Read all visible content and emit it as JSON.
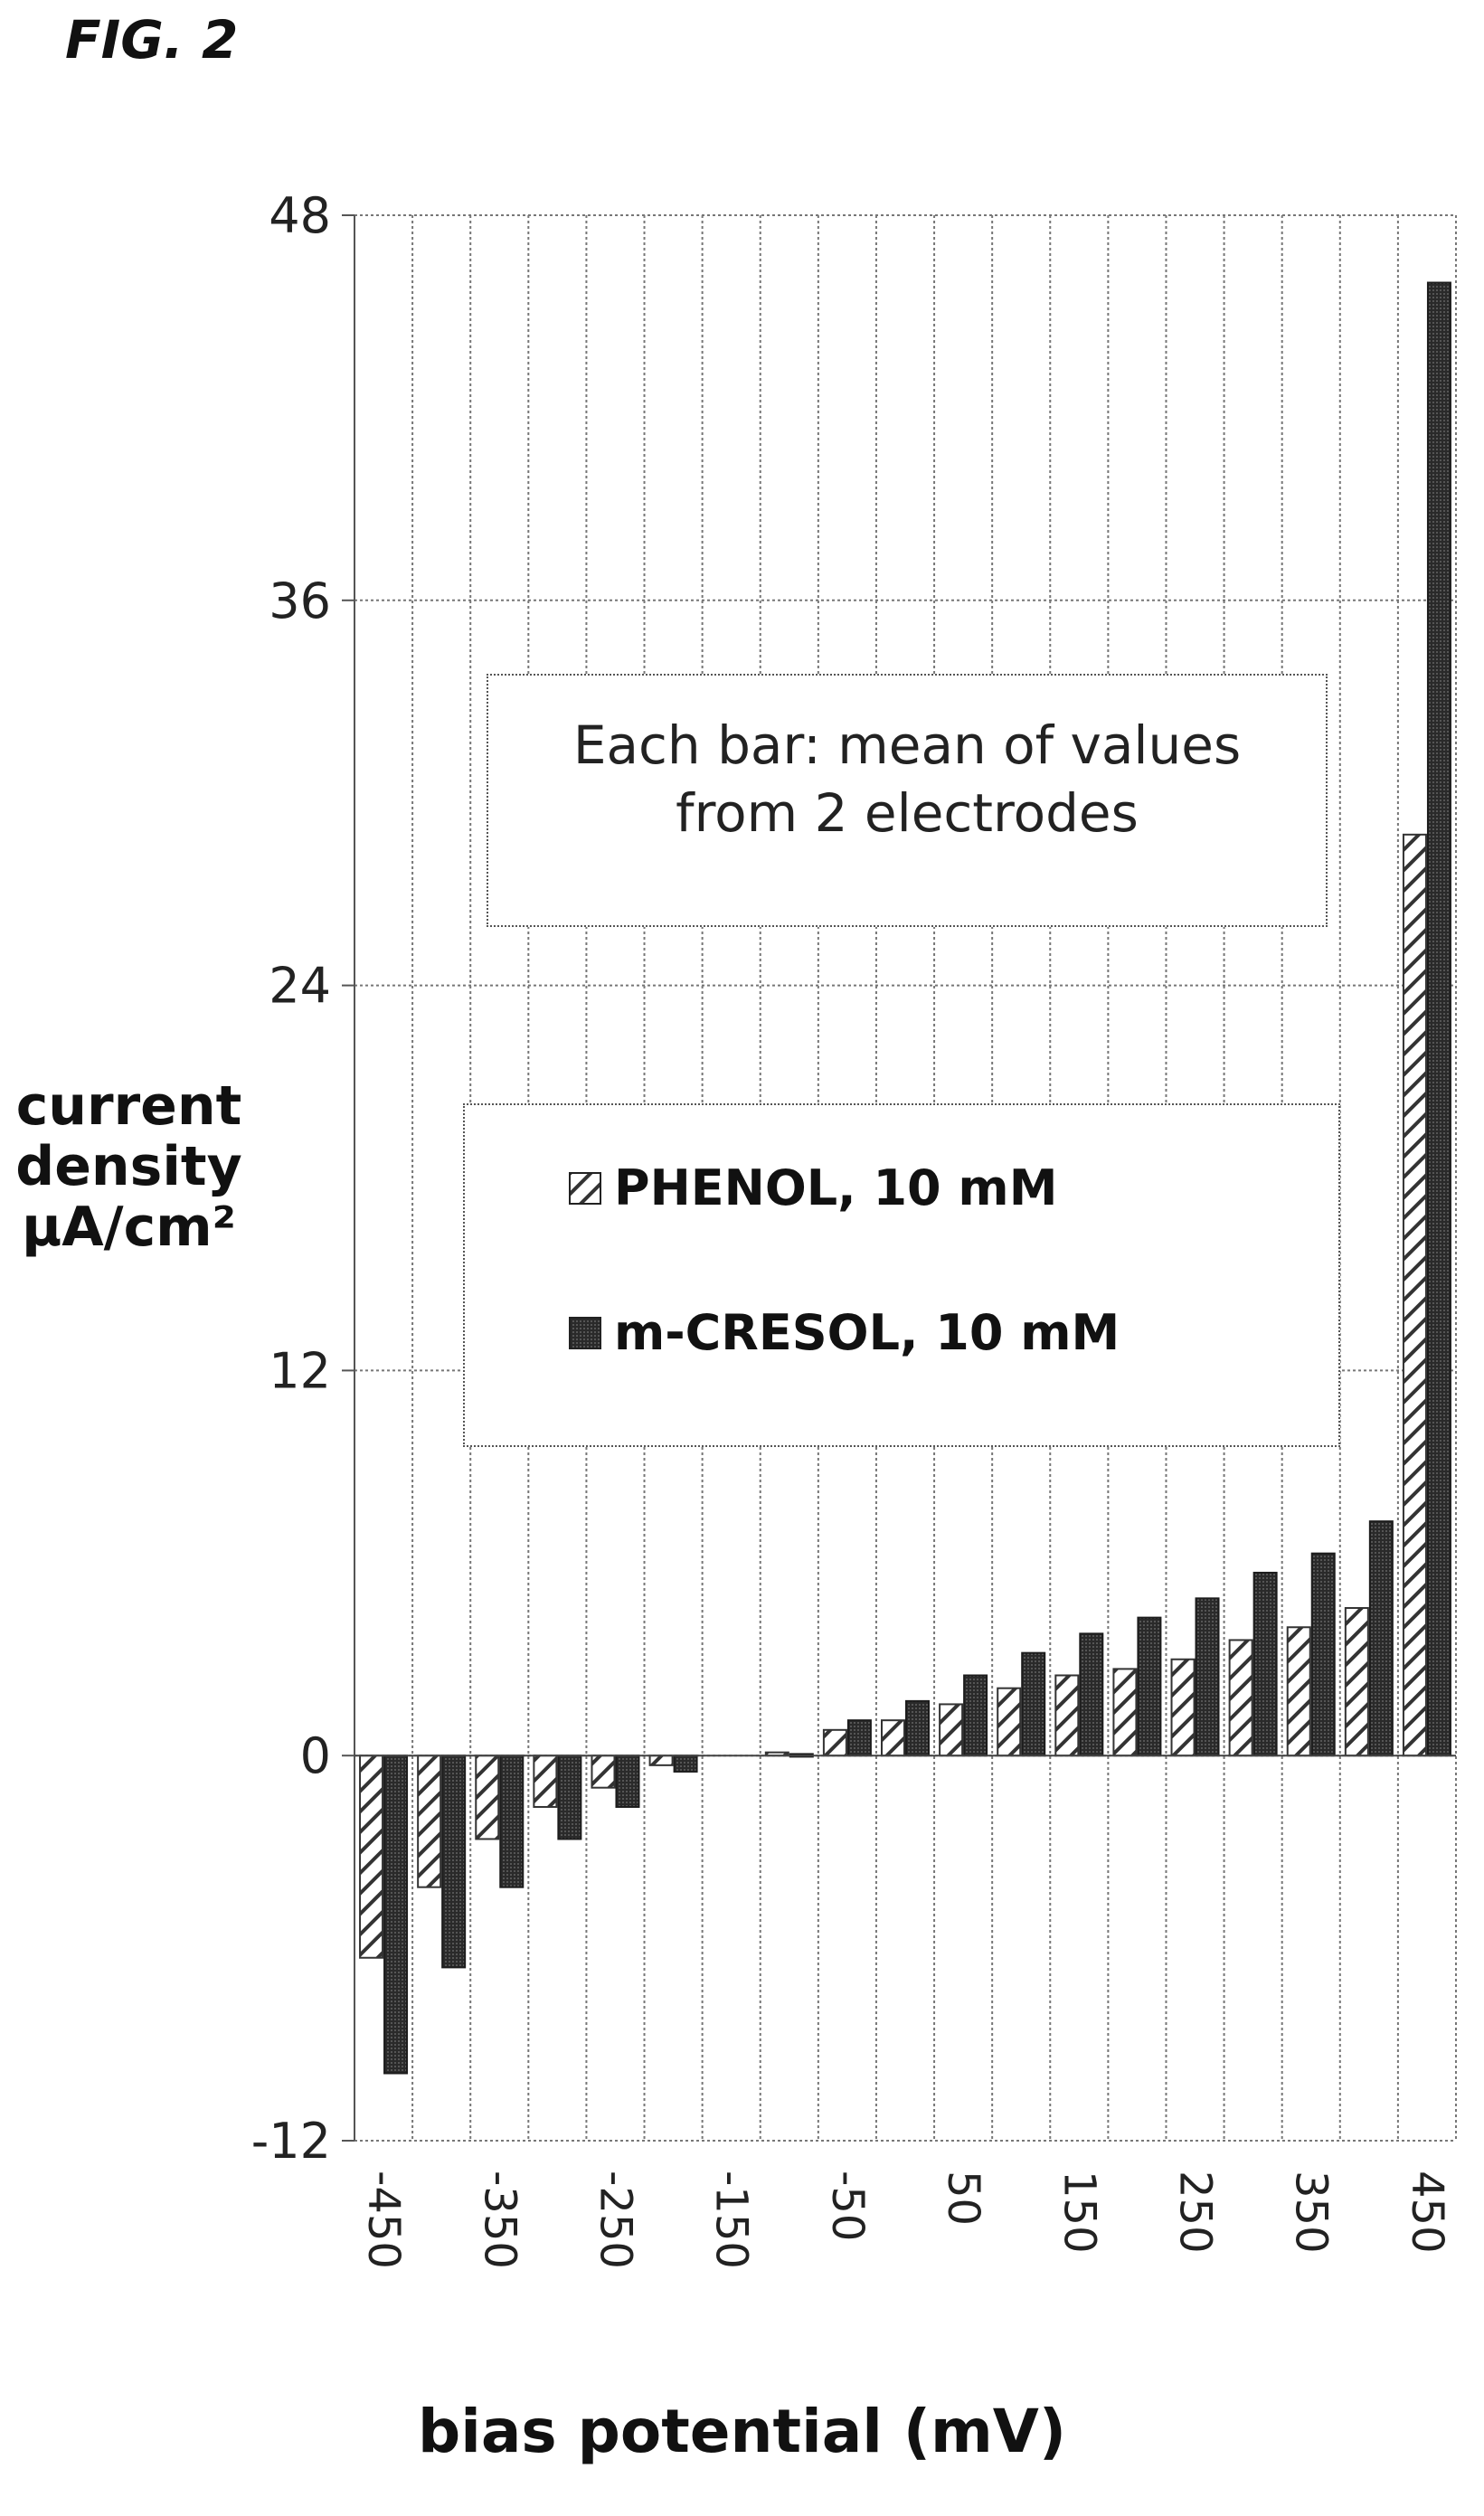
{
  "figure_label": "FIG. 2",
  "chart_data": {
    "type": "bar",
    "title": "",
    "xlabel": "bias potential (mV)",
    "ylabel_lines": [
      "current",
      "density",
      "µA/cm²"
    ],
    "ylim": [
      -12,
      48
    ],
    "yticks": [
      "-12",
      "0",
      "12",
      "24",
      "36",
      "48"
    ],
    "x": [
      -450,
      -400,
      -350,
      -300,
      -250,
      -200,
      -150,
      -100,
      -50,
      0,
      50,
      100,
      150,
      200,
      250,
      300,
      350,
      400,
      450
    ],
    "x_tick_labels": [
      "-450",
      "-350",
      "-250",
      "-150",
      "-50",
      "50",
      "150",
      "250",
      "350",
      "450"
    ],
    "grid": true,
    "legend_placement": "center",
    "series": [
      {
        "name": "PHENOL, 10 mM",
        "pattern": "hatched",
        "values": [
          -6.3,
          -4.1,
          -2.6,
          -1.6,
          -1.0,
          -0.3,
          0.0,
          0.1,
          0.8,
          1.1,
          1.6,
          2.1,
          2.5,
          2.7,
          3.0,
          3.6,
          4.0,
          4.6,
          28.7
        ]
      },
      {
        "name": "m-CRESOL, 10 mM",
        "pattern": "solid",
        "values": [
          -9.9,
          -6.6,
          -4.1,
          -2.6,
          -1.6,
          -0.5,
          0.0,
          0.05,
          1.1,
          1.7,
          2.5,
          3.2,
          3.8,
          4.3,
          4.9,
          5.7,
          6.3,
          7.3,
          45.9
        ]
      }
    ],
    "annotation_lines": [
      "Each bar: mean of values",
      "from 2 electrodes"
    ]
  }
}
